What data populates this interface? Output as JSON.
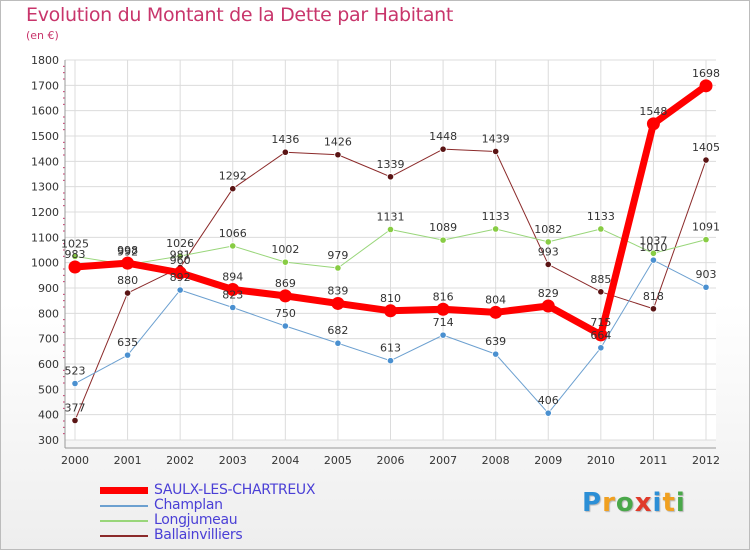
{
  "title": "Evolution du Montant de la Dette par Habitant",
  "unit": "(en €)",
  "logo": {
    "letters": [
      {
        "ch": "P",
        "color": "#2c8fd6"
      },
      {
        "ch": "r",
        "color": "#f0a020"
      },
      {
        "ch": "o",
        "color": "#4aa84a"
      },
      {
        "ch": "x",
        "color": "#e03a2a"
      },
      {
        "ch": "i",
        "color": "#2c8fd6"
      },
      {
        "ch": "t",
        "color": "#f0a020"
      },
      {
        "ch": "i",
        "color": "#4aa84a"
      }
    ]
  },
  "chart_data": {
    "type": "line",
    "x": [
      "2000",
      "2001",
      "2002",
      "2003",
      "2004",
      "2005",
      "2006",
      "2007",
      "2008",
      "2009",
      "2010",
      "2011",
      "2012"
    ],
    "ylim": [
      300,
      1800
    ],
    "yticks": [
      300,
      400,
      500,
      600,
      700,
      800,
      900,
      1000,
      1100,
      1200,
      1300,
      1400,
      1500,
      1600,
      1700,
      1800
    ],
    "grid": true,
    "legend": "bottom-left",
    "series": [
      {
        "name": "Ballainvilliers",
        "color": "#8b2a2a",
        "dot": "#5a1414",
        "width": 1,
        "values": [
          377,
          880,
          981,
          1292,
          1436,
          1426,
          1339,
          1448,
          1439,
          993,
          885,
          818,
          1405
        ],
        "labels": [
          "377",
          "880",
          "981",
          "1292",
          "1436",
          "1426",
          "1339",
          "1448",
          "1439",
          "993",
          "885",
          "818",
          "1405"
        ]
      },
      {
        "name": "Longjumeau",
        "color": "#99d67a",
        "dot": "#88cc44",
        "width": 1,
        "values": [
          1025,
          992,
          1026,
          1066,
          1002,
          979,
          1131,
          1089,
          1133,
          1082,
          1133,
          1037,
          1091
        ],
        "labels": [
          "1025",
          "992",
          "1026",
          "1066",
          "1002",
          "979",
          "1131",
          "1089",
          "1133",
          "1082",
          "1133",
          "1037",
          "1091"
        ]
      },
      {
        "name": "Champlan",
        "color": "#6ca0d0",
        "dot": "#4a90d0",
        "width": 1,
        "values": [
          523,
          635,
          892,
          823,
          750,
          682,
          613,
          714,
          639,
          406,
          664,
          1010,
          903
        ],
        "labels": [
          "523",
          "635",
          "892",
          "823",
          "750",
          "682",
          "613",
          "714",
          "639",
          "406",
          "664",
          "1010",
          "903"
        ]
      },
      {
        "name": "SAULX-LES-CHARTREUX",
        "color": "#ff0000",
        "dot": "#ff0000",
        "width": 7,
        "values": [
          983,
          998,
          960,
          894,
          869,
          839,
          810,
          816,
          804,
          829,
          715,
          1548,
          1698
        ],
        "labels": [
          "983",
          "998",
          "960",
          "894",
          "869",
          "839",
          "810",
          "816",
          "804",
          "829",
          "715",
          "1548",
          "1698"
        ]
      }
    ]
  },
  "legend": [
    {
      "label": "SAULX-LES-CHARTREUX",
      "color": "#ff0000",
      "thick": 7
    },
    {
      "label": "Champlan",
      "color": "#6ca0d0",
      "thick": 2
    },
    {
      "label": "Longjumeau",
      "color": "#99d67a",
      "thick": 2
    },
    {
      "label": "Ballainvilliers",
      "color": "#8b2a2a",
      "thick": 2
    }
  ]
}
